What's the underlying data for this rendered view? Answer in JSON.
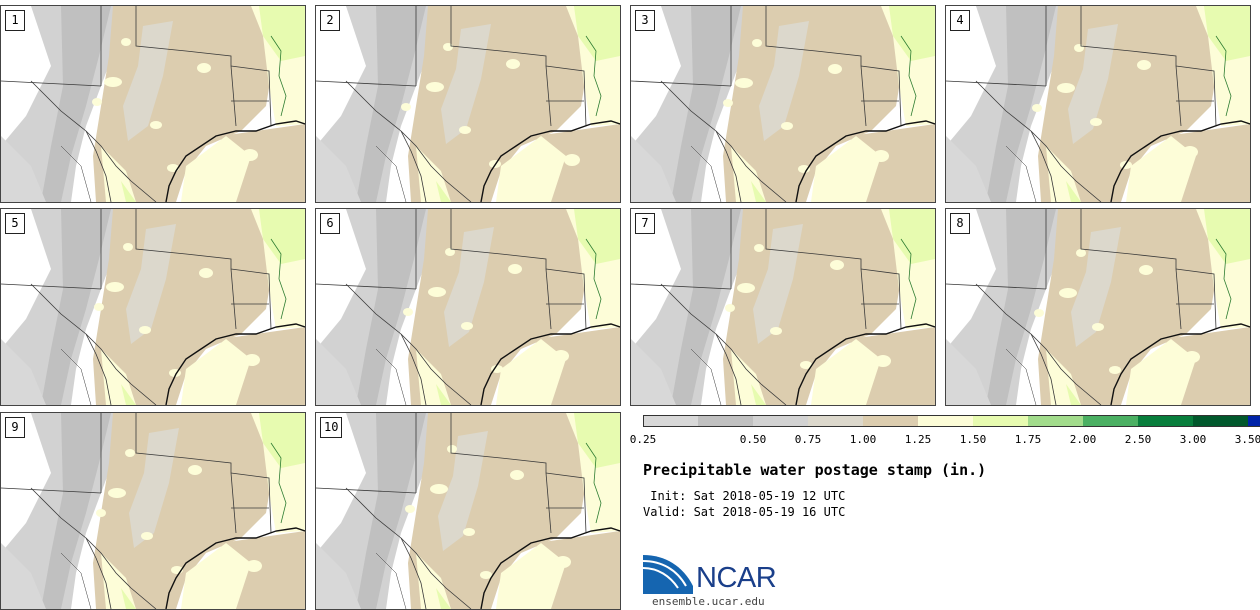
{
  "colors": {
    "c025": "#d8d8d8",
    "c050": "#c0c0c0",
    "c075": "#d2d2d2",
    "c100": "#dcd8cc",
    "c125": "#dccdaf",
    "c150": "#fdfdd8",
    "c175": "#e7fbb0",
    "c200": "#a2dc8c",
    "c250": "#4bb063",
    "c300": "#087e3c",
    "c350": "#01582c",
    "c400": "#0023a8",
    "border": "#3a3a3a",
    "coast": "#111111"
  },
  "panels": [
    {
      "label": "1"
    },
    {
      "label": "2"
    },
    {
      "label": "3"
    },
    {
      "label": "4"
    },
    {
      "label": "5"
    },
    {
      "label": "6"
    },
    {
      "label": "7"
    },
    {
      "label": "8"
    },
    {
      "label": "9"
    },
    {
      "label": "10"
    }
  ],
  "colorbar": {
    "ticks": [
      "0.25",
      "0.50",
      "0.75",
      "1.00",
      "1.25",
      "1.50",
      "1.75",
      "2.00",
      "2.50",
      "3.00",
      "3.50"
    ],
    "segment_colors": [
      "#d8d8d8",
      "#c0c0c0",
      "#d2d2d2",
      "#dcd8cc",
      "#dccdaf",
      "#fdfdd8",
      "#e7fbb0",
      "#a2dc8c",
      "#4bb063",
      "#087e3c",
      "#01582c",
      "#0023a8"
    ]
  },
  "title": "Precipitable water postage stamp (in.)",
  "init_line": " Init: Sat 2018-05-19 12 UTC",
  "valid_line": "Valid: Sat 2018-05-19 16 UTC",
  "logo_text": "NCAR",
  "site": "ensemble.ucar.edu"
}
